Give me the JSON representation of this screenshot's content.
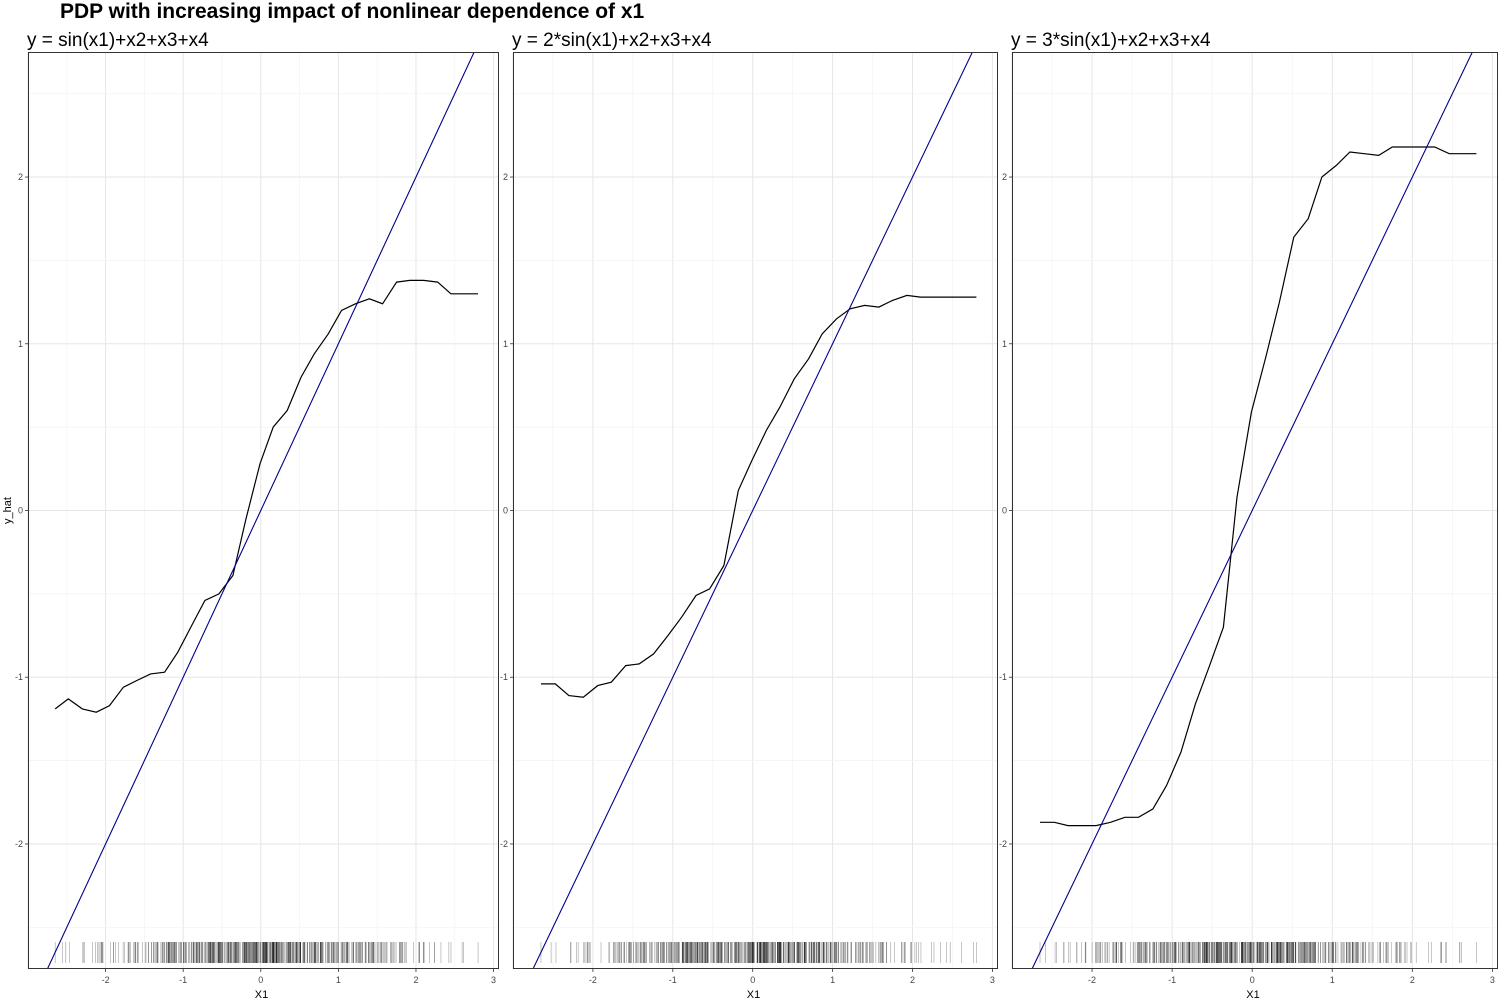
{
  "title": "PDP with increasing impact of nonlinear dependence of x1",
  "chart_data": [
    {
      "type": "line",
      "title": "y = sin(x1)+x2+x3+x4",
      "xlabel": "X1",
      "ylabel": "y_hat",
      "xlim": [
        -3.0,
        3.07
      ],
      "ylim": [
        -2.75,
        2.75
      ],
      "xticks": [
        -2,
        -1,
        0,
        1,
        2,
        3
      ],
      "yticks": [
        -2,
        -1,
        0,
        1,
        2
      ],
      "grid": true,
      "series": [
        {
          "color": "#000000",
          "x": [
            -2.65,
            -2.48,
            -2.3,
            -2.12,
            -1.95,
            -1.77,
            -1.6,
            -1.42,
            -1.24,
            -1.07,
            -0.89,
            -0.72,
            -0.54,
            -0.36,
            -0.19,
            -0.01,
            0.16,
            0.34,
            0.52,
            0.69,
            0.87,
            1.04,
            1.22,
            1.4,
            1.57,
            1.75,
            1.92,
            2.1,
            2.28,
            2.45,
            2.63,
            2.8
          ],
          "y": [
            -1.19,
            -1.13,
            -1.19,
            -1.21,
            -1.17,
            -1.06,
            -1.02,
            -0.98,
            -0.97,
            -0.85,
            -0.69,
            -0.54,
            -0.5,
            -0.39,
            -0.05,
            0.28,
            0.5,
            0.6,
            0.8,
            0.94,
            1.06,
            1.2,
            1.24,
            1.27,
            1.24,
            1.37,
            1.38,
            1.38,
            1.37,
            1.3,
            1.3,
            1.3
          ]
        },
        {
          "color": "#00008B",
          "line": {
            "slope": 1.0,
            "intercept": 0.0
          }
        }
      ],
      "rug": {
        "from": -2.65,
        "to": 2.8
      }
    },
    {
      "type": "line",
      "title": "y = 2*sin(x1)+x2+x3+x4",
      "xlabel": "X1",
      "ylabel": "",
      "xlim": [
        -3.0,
        3.07
      ],
      "ylim": [
        -2.75,
        2.75
      ],
      "xticks": [
        -2,
        -1,
        0,
        1,
        2,
        3
      ],
      "yticks": [
        -2,
        -1,
        0,
        1,
        2
      ],
      "grid": true,
      "series": [
        {
          "color": "#000000",
          "x": [
            -2.65,
            -2.47,
            -2.3,
            -2.12,
            -1.94,
            -1.77,
            -1.59,
            -1.42,
            -1.24,
            -1.06,
            -0.89,
            -0.71,
            -0.54,
            -0.36,
            -0.18,
            -0.01,
            0.17,
            0.34,
            0.52,
            0.7,
            0.87,
            1.05,
            1.22,
            1.4,
            1.58,
            1.75,
            1.93,
            2.1,
            2.28,
            2.46,
            2.63,
            2.8
          ],
          "y": [
            -1.04,
            -1.04,
            -1.11,
            -1.12,
            -1.05,
            -1.03,
            -0.93,
            -0.92,
            -0.86,
            -0.75,
            -0.64,
            -0.51,
            -0.47,
            -0.33,
            0.12,
            0.3,
            0.48,
            0.62,
            0.79,
            0.91,
            1.06,
            1.15,
            1.21,
            1.23,
            1.22,
            1.26,
            1.29,
            1.28,
            1.28,
            1.28,
            1.28,
            1.28
          ]
        },
        {
          "color": "#00008B",
          "line": {
            "slope": 1.0,
            "intercept": 0.0
          }
        }
      ],
      "rug": {
        "from": -2.65,
        "to": 2.8
      }
    },
    {
      "type": "line",
      "title": "y = 3*sin(x1)+x2+x3+x4",
      "xlabel": "X1",
      "ylabel": "",
      "xlim": [
        -3.0,
        3.07
      ],
      "ylim": [
        -2.75,
        2.75
      ],
      "xticks": [
        -2,
        -1,
        0,
        1,
        2,
        3
      ],
      "yticks": [
        -2,
        -1,
        0,
        1,
        2
      ],
      "grid": true,
      "series": [
        {
          "color": "#000000",
          "x": [
            -2.65,
            -2.47,
            -2.3,
            -2.12,
            -1.95,
            -1.77,
            -1.59,
            -1.42,
            -1.24,
            -1.07,
            -0.89,
            -0.71,
            -0.54,
            -0.36,
            -0.19,
            -0.01,
            0.17,
            0.34,
            0.52,
            0.7,
            0.87,
            1.05,
            1.22,
            1.4,
            1.58,
            1.75,
            1.93,
            2.1,
            2.28,
            2.46,
            2.63,
            2.8
          ],
          "y": [
            -1.87,
            -1.87,
            -1.89,
            -1.89,
            -1.89,
            -1.87,
            -1.84,
            -1.84,
            -1.79,
            -1.65,
            -1.45,
            -1.16,
            -0.94,
            -0.7,
            0.08,
            0.59,
            0.92,
            1.25,
            1.64,
            1.75,
            2.0,
            2.07,
            2.15,
            2.14,
            2.13,
            2.18,
            2.18,
            2.18,
            2.18,
            2.14,
            2.14,
            2.14
          ]
        },
        {
          "color": "#00008B",
          "line": {
            "slope": 1.0,
            "intercept": 0.0
          }
        }
      ],
      "rug": {
        "from": -2.65,
        "to": 2.8
      }
    }
  ]
}
